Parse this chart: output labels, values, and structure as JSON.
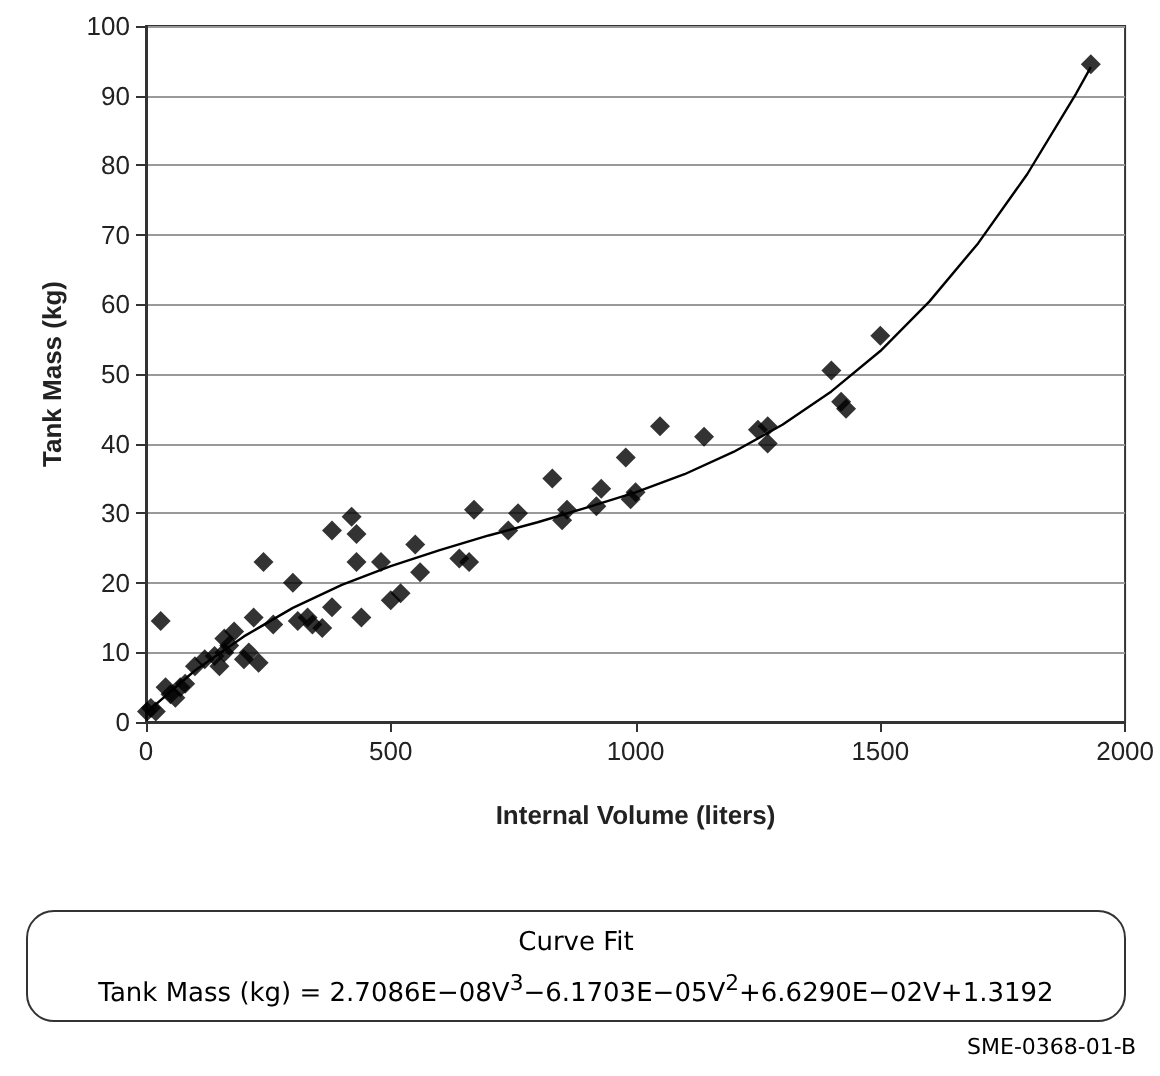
{
  "chart_data": {
    "type": "scatter",
    "xlabel": "Internal Volume (liters)",
    "ylabel": "Tank Mass (kg)",
    "xlim": [
      0,
      2000
    ],
    "xticks": [
      0,
      500,
      1000,
      1500,
      2000
    ],
    "ylim": [
      0,
      100
    ],
    "yticks": [
      0,
      10,
      20,
      30,
      40,
      50,
      60,
      70,
      80,
      90,
      100
    ],
    "grid": "y",
    "marker": "diamond",
    "annotations": [
      "Curve Fit",
      "Tank Mass (kg) = 2.7086E−08V$^{3}$−6.1703E−05V$^{2}$+6.6290E−02V+1.3192",
      "SME-0368-01-B"
    ],
    "series": [
      {
        "color": "#000000",
        "x": [
          2,
          10,
          20,
          30,
          40,
          50,
          60,
          70,
          80,
          100,
          120,
          140,
          150,
          160,
          160,
          170,
          180,
          200,
          210,
          220,
          230,
          240,
          260,
          300,
          310,
          330,
          340,
          360,
          380,
          380,
          420,
          430,
          430,
          440,
          480,
          500,
          520,
          550,
          560,
          640,
          660,
          670,
          740,
          760,
          830,
          850,
          860,
          920,
          930,
          980,
          990,
          1000,
          1050,
          1140,
          1250,
          1270,
          1270,
          1400,
          1420,
          1430,
          1500,
          1930
        ],
        "values": [
          1.5,
          2,
          1.5,
          14.5,
          5,
          4,
          3.5,
          5,
          5.5,
          8,
          9,
          9.5,
          8,
          10,
          12,
          11,
          13,
          9,
          10,
          15,
          8.5,
          23,
          14,
          20,
          14.5,
          15,
          14,
          13.5,
          16.5,
          27.5,
          29.5,
          27,
          23,
          15,
          23,
          17.5,
          18.5,
          25.5,
          21.5,
          23.5,
          23,
          30.5,
          27.5,
          30,
          35,
          29,
          30.5,
          31,
          33.5,
          38,
          32,
          33,
          42.5,
          41,
          42,
          42.5,
          40,
          50.5,
          46,
          45,
          55.5,
          94.5
        ]
      },
      {
        "type": "line",
        "color": "#000000",
        "marker": "none",
        "x": [
          0,
          100,
          200,
          300,
          400,
          500,
          600,
          700,
          800,
          900,
          1000,
          1100,
          1200,
          1300,
          1400,
          1500,
          1600,
          1700,
          1800,
          1900,
          1930
        ],
        "values": [
          1.3,
          7.4,
          12.3,
          16.4,
          19.7,
          22.4,
          24.7,
          26.8,
          28.7,
          30.8,
          33.0,
          35.6,
          38.8,
          42.7,
          47.5,
          53.3,
          60.4,
          68.8,
          78.7,
          90.3,
          94.1
        ]
      }
    ]
  }
}
